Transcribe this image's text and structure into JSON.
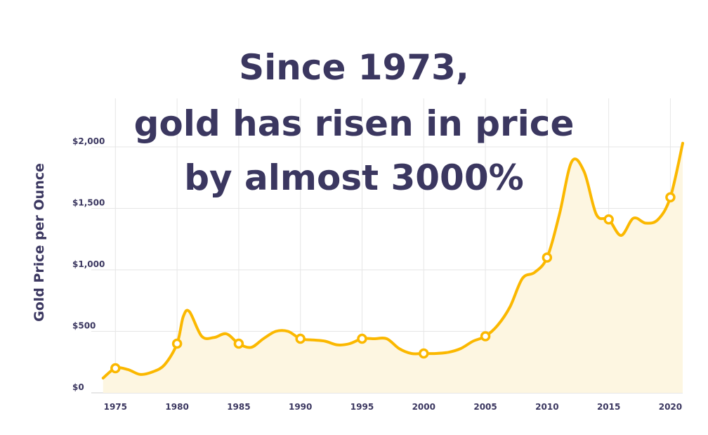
{
  "chart_data": {
    "type": "area",
    "title_lines": [
      "Since 1973,",
      "gold has risen in price",
      "by almost 3000%"
    ],
    "xlabel": "",
    "ylabel": "Gold Price per Ounce",
    "xlim": [
      1973.9,
      2021
    ],
    "ylim": [
      0,
      2000
    ],
    "x_ticks": [
      1975,
      1980,
      1985,
      1990,
      1995,
      2000,
      2005,
      2010,
      2015,
      2020
    ],
    "x_tick_labels": [
      "1975",
      "1980",
      "1985",
      "1990",
      "1995",
      "2000",
      "2005",
      "2010",
      "2015",
      "2020"
    ],
    "y_ticks": [
      0,
      500,
      1000,
      1500,
      2000
    ],
    "y_tick_labels": [
      "$0",
      "$500",
      "$1,000",
      "$1,500",
      "$2,000"
    ],
    "grid": true,
    "colors": {
      "line": "#fbb800",
      "fill": "#fdf6e1",
      "grid": "#e6e6e6",
      "text": "#3b3760"
    },
    "series": [
      {
        "x": [
          1974,
          1975,
          1976,
          1977,
          1978,
          1979,
          1980,
          1980.5,
          1981,
          1982,
          1983,
          1984,
          1985,
          1986,
          1987,
          1988,
          1989,
          1990,
          1991,
          1992,
          1993,
          1994,
          1995,
          1996,
          1997,
          1998,
          1999,
          2000,
          2001,
          2002,
          2003,
          2004,
          2005,
          2006,
          2007,
          2008,
          2009,
          2010,
          2011,
          2012,
          2013,
          2014,
          2015,
          2016,
          2017,
          2018,
          2019,
          2020,
          2021
        ],
        "y": [
          120,
          200,
          190,
          150,
          170,
          230,
          400,
          620,
          660,
          460,
          450,
          480,
          400,
          370,
          440,
          500,
          500,
          440,
          430,
          420,
          390,
          400,
          440,
          440,
          440,
          360,
          320,
          320,
          320,
          330,
          360,
          420,
          460,
          550,
          700,
          930,
          980,
          1100,
          1450,
          1880,
          1800,
          1450,
          1410,
          1280,
          1420,
          1380,
          1410,
          1590,
          2030
        ]
      }
    ],
    "markers": {
      "x": [
        1975,
        1980,
        1985,
        1990,
        1995,
        2000,
        2005,
        2010,
        2015,
        2020
      ],
      "y": [
        200,
        400,
        400,
        440,
        440,
        320,
        460,
        1100,
        1410,
        1590
      ]
    }
  }
}
